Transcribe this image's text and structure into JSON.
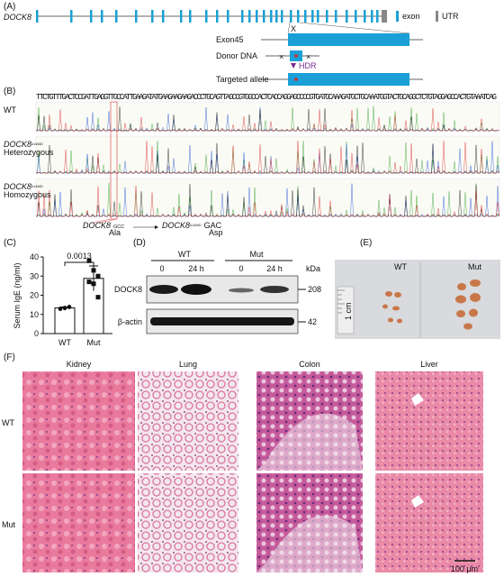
{
  "A": {
    "label": "(A)",
    "gene": "DOCK8",
    "legend_exon": "exon",
    "legend_utr": "UTR",
    "exon": "Exon45",
    "donor": "Donor DNA",
    "hdr": "HDR",
    "allele": "Targeted allele"
  },
  "B": {
    "label": "(B)",
    "sequence": "TTCTGTTTGACTCCGATTGAGGTTGCCATTGAAGATATGAAGAAGAAGACCCTGCAGTTAGCCGTGGCCACTCACCAGGAGCCCCGTGATGCAAAGATGCTGCAAATGGTACTGCAGGCTCTGTAGGAGCCACTGTAAATCAG",
    "rows": [
      {
        "name": "WT"
      },
      {
        "gene": "DOCK8",
        "sup": "A1406D",
        "genotype": "Heterozygous"
      },
      {
        "gene": "DOCK8",
        "sup": "A1406D",
        "genotype": "Homozygous"
      }
    ],
    "mutation": {
      "gene": "DOCK8",
      "codon_wt": "GCC",
      "aa_wt": "Ala",
      "sup": "A1406D",
      "codon_mut": "GAC",
      "aa_mut": "Asp"
    }
  },
  "C": {
    "label": "(C)",
    "chart_data": {
      "type": "bar",
      "y_label": "Serum IgE (ng/ml)",
      "categories": [
        "WT",
        "Mut"
      ],
      "values": [
        13.4,
        28.8
      ],
      "errors": [
        0.5,
        6.5
      ],
      "points": [
        [
          13,
          13.5,
          14,
          12.8,
          13.2,
          13.8
        ],
        [
          38,
          33,
          30,
          27,
          26,
          19
        ]
      ],
      "ylim": [
        0,
        40
      ],
      "yticks": [
        0,
        10,
        20,
        30,
        40
      ],
      "annotation": "0.0013"
    }
  },
  "D": {
    "label": "(D)",
    "groups": [
      "WT",
      "Mut"
    ],
    "lanes": [
      "0",
      "24 h",
      "0",
      "24 h"
    ],
    "unit": "kDa",
    "proteins": [
      {
        "name": "DOCK8",
        "kda": "208"
      },
      {
        "name": "β-actin",
        "kda": "42"
      }
    ]
  },
  "E": {
    "label": "(E)",
    "groups": [
      "WT",
      "Mut"
    ],
    "scale": "1 cm"
  },
  "F": {
    "label": "(F)",
    "tissues": [
      "Kidney",
      "Lung",
      "Colon",
      "Liver"
    ],
    "rows": [
      "WT",
      "Mut"
    ],
    "scale_bar": "100 μm"
  }
}
